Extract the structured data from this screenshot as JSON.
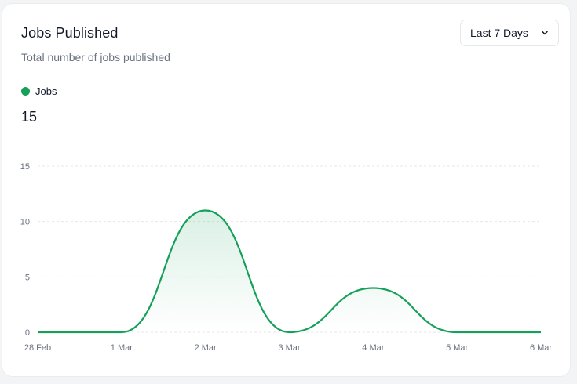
{
  "header": {
    "title": "Jobs Published",
    "subtitle": "Total number of jobs published"
  },
  "range_select": {
    "label": "Last 7 Days",
    "icon": "chevron-down-icon"
  },
  "legend": {
    "label": "Jobs",
    "color": "#16a05a"
  },
  "total": "15",
  "chart_data": {
    "type": "area",
    "x": [
      "28 Feb",
      "1 Mar",
      "2 Mar",
      "3 Mar",
      "4 Mar",
      "5 Mar",
      "6 Mar"
    ],
    "series": [
      {
        "name": "Jobs",
        "values": [
          0,
          0,
          11,
          0,
          4,
          0,
          0
        ]
      }
    ],
    "yticks": [
      0,
      5,
      10,
      15
    ],
    "ylim": [
      0,
      15
    ],
    "grid": true,
    "curve": "smooth",
    "color": "#16a05a"
  }
}
